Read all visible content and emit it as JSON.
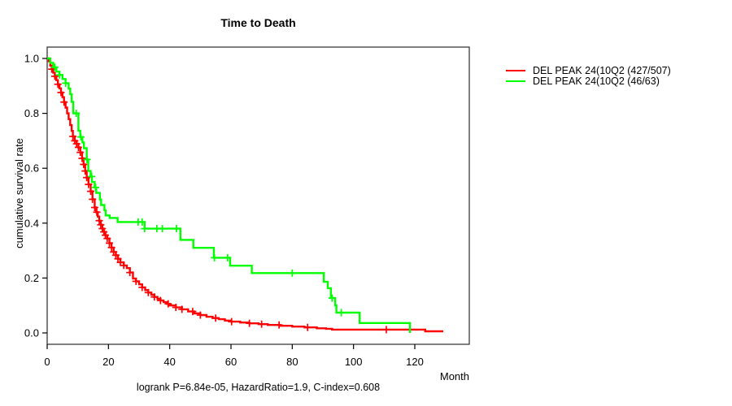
{
  "chart_data": {
    "type": "line",
    "subtype": "kaplan-meier-step-curves",
    "title": "Time to Death",
    "xlabel": "Month",
    "ylabel": "cumulative survival rate",
    "annotation": "logrank P=6.84e-05, HazardRatio=1.9, C-index=0.608",
    "xlim": [
      0,
      138
    ],
    "ylim": [
      0,
      1.0
    ],
    "x_ticks": [
      0,
      20,
      40,
      60,
      80,
      100,
      120
    ],
    "y_ticks": [
      0.0,
      0.2,
      0.4,
      0.6,
      0.8,
      1.0
    ],
    "grid": false,
    "legend_position": "right-outside",
    "frame_color": "#3a3a3a",
    "series": [
      {
        "name": "DEL PEAK 24(10Q2 (427/507)",
        "color": "#ff0000",
        "end_t": 129.3,
        "steps": [
          [
            0,
            1.0
          ],
          [
            0.5,
            0.99
          ],
          [
            1,
            0.974
          ],
          [
            1.5,
            0.961
          ],
          [
            2,
            0.948
          ],
          [
            2.5,
            0.935
          ],
          [
            3,
            0.921
          ],
          [
            3.5,
            0.906
          ],
          [
            4,
            0.891
          ],
          [
            4.5,
            0.876
          ],
          [
            5,
            0.859
          ],
          [
            5.5,
            0.841
          ],
          [
            6,
            0.821
          ],
          [
            6.5,
            0.8
          ],
          [
            7,
            0.779
          ],
          [
            7.5,
            0.757
          ],
          [
            8,
            0.736
          ],
          [
            8.4,
            0.716
          ],
          [
            9,
            0.7
          ],
          [
            9.6,
            0.689
          ],
          [
            10.2,
            0.676
          ],
          [
            10.8,
            0.658
          ],
          [
            11.4,
            0.636
          ],
          [
            11.9,
            0.614
          ],
          [
            12.4,
            0.59
          ],
          [
            12.9,
            0.566
          ],
          [
            13.5,
            0.541
          ],
          [
            14.2,
            0.516
          ],
          [
            14.8,
            0.487
          ],
          [
            15.5,
            0.457
          ],
          [
            16,
            0.44
          ],
          [
            16.5,
            0.424
          ],
          [
            17,
            0.409
          ],
          [
            17.5,
            0.394
          ],
          [
            18,
            0.38
          ],
          [
            18.5,
            0.368
          ],
          [
            19,
            0.356
          ],
          [
            19.6,
            0.344
          ],
          [
            20.3,
            0.327
          ],
          [
            21,
            0.311
          ],
          [
            21.7,
            0.295
          ],
          [
            22.4,
            0.283
          ],
          [
            23.1,
            0.27
          ],
          [
            23.9,
            0.257
          ],
          [
            25,
            0.246
          ],
          [
            26,
            0.236
          ],
          [
            27,
            0.22
          ],
          [
            28,
            0.198
          ],
          [
            29,
            0.188
          ],
          [
            30,
            0.177
          ],
          [
            31,
            0.166
          ],
          [
            32,
            0.156
          ],
          [
            33,
            0.147
          ],
          [
            34,
            0.139
          ],
          [
            35,
            0.131
          ],
          [
            36,
            0.124
          ],
          [
            37,
            0.118
          ],
          [
            38,
            0.112
          ],
          [
            39,
            0.106
          ],
          [
            40,
            0.1
          ],
          [
            42,
            0.093
          ],
          [
            44,
            0.086
          ],
          [
            46,
            0.078
          ],
          [
            48,
            0.071
          ],
          [
            50,
            0.065
          ],
          [
            52,
            0.059
          ],
          [
            54,
            0.054
          ],
          [
            56,
            0.05
          ],
          [
            58,
            0.045
          ],
          [
            60,
            0.041
          ],
          [
            63,
            0.038
          ],
          [
            66,
            0.035
          ],
          [
            69,
            0.032
          ],
          [
            72,
            0.029
          ],
          [
            76,
            0.026
          ],
          [
            80,
            0.023
          ],
          [
            84,
            0.02
          ],
          [
            88,
            0.017
          ],
          [
            91,
            0.015
          ],
          [
            93,
            0.012
          ],
          [
            123.4,
            0.006
          ]
        ],
        "censor_t": [
          1.5,
          2.5,
          3.5,
          4.5,
          5.5,
          8.4,
          9,
          9.6,
          10.2,
          10.8,
          11.4,
          11.9,
          12.4,
          12.9,
          13.5,
          14.2,
          14.8,
          15.5,
          16.2,
          17,
          17.5,
          18,
          18.5,
          19,
          19.6,
          20.3,
          21,
          21.7,
          22.4,
          23.1,
          23.9,
          25,
          27,
          29,
          31,
          33,
          35,
          37,
          39.5,
          42,
          44,
          47.5,
          50,
          55,
          60.2,
          66,
          70,
          75.7,
          85,
          110.7
        ]
      },
      {
        "name": "DEL PEAK 24(10Q2 (46/63)",
        "color": "#00ff00",
        "end_t": 118.4,
        "steps": [
          [
            0,
            1.0
          ],
          [
            1,
            0.984
          ],
          [
            2,
            0.968
          ],
          [
            3,
            0.952
          ],
          [
            4,
            0.94
          ],
          [
            5,
            0.925
          ],
          [
            6,
            0.91
          ],
          [
            7,
            0.89
          ],
          [
            7.5,
            0.87
          ],
          [
            8,
            0.842
          ],
          [
            8.5,
            0.8
          ],
          [
            10.2,
            0.737
          ],
          [
            10.8,
            0.714
          ],
          [
            11.5,
            0.694
          ],
          [
            12,
            0.673
          ],
          [
            12.9,
            0.632
          ],
          [
            13.4,
            0.59
          ],
          [
            14.2,
            0.57
          ],
          [
            14.6,
            0.55
          ],
          [
            15.5,
            0.53
          ],
          [
            16,
            0.51
          ],
          [
            17.2,
            0.486
          ],
          [
            17.6,
            0.466
          ],
          [
            18.7,
            0.447
          ],
          [
            19.1,
            0.428
          ],
          [
            20.4,
            0.419
          ],
          [
            23,
            0.404
          ],
          [
            31.8,
            0.38
          ],
          [
            43.5,
            0.339
          ],
          [
            47.7,
            0.31
          ],
          [
            54.4,
            0.274
          ],
          [
            59.7,
            0.245
          ],
          [
            66.8,
            0.218
          ],
          [
            90.3,
            0.186
          ],
          [
            91.6,
            0.163
          ],
          [
            92.6,
            0.127
          ],
          [
            94,
            0.1
          ],
          [
            94.4,
            0.074
          ],
          [
            102,
            0.036
          ],
          [
            118.4,
            0.0
          ]
        ],
        "censor_t": [
          2.5,
          4,
          6,
          9.5,
          11,
          13,
          14.5,
          15.8,
          29.7,
          31,
          31.8,
          35.8,
          37.6,
          42.2,
          54.6,
          58.9,
          80,
          93,
          96
        ]
      }
    ]
  }
}
